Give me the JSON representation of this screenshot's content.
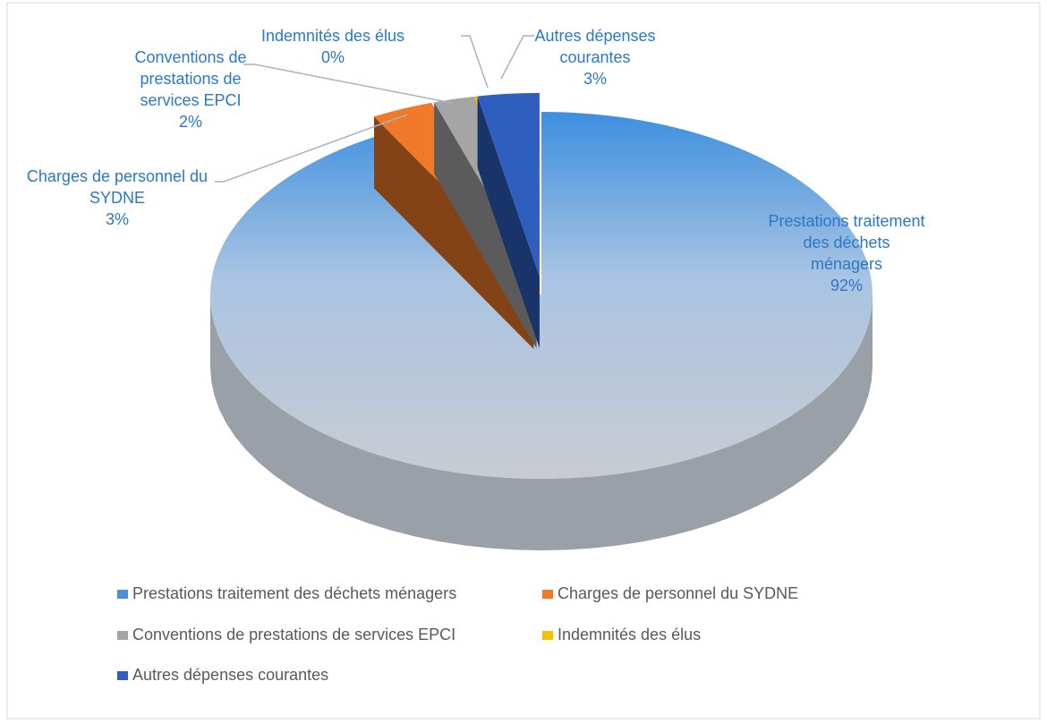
{
  "chart_data": {
    "type": "pie",
    "categories": [
      "Prestations traitement des déchets ménagers",
      "Charges de personnel du SYDNE",
      "Conventions de prestations de services EPCI",
      "Indemnités des élus",
      "Autres dépenses courantes"
    ],
    "values": [
      92,
      3,
      2,
      0,
      3
    ],
    "value_labels": [
      "92%",
      "3%",
      "2%",
      "0%",
      "3%"
    ],
    "colors": [
      "#4a8fd8",
      "#f07a2a",
      "#a5a5a5",
      "#f5c000",
      "#2e5fbf"
    ],
    "legend": "bottom"
  }
}
